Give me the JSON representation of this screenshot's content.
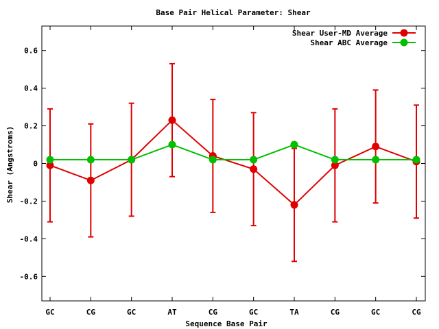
{
  "chart_data": {
    "type": "line",
    "title": "Base Pair Helical Parameter: Shear",
    "xlabel": "Sequence Base Pair",
    "ylabel": "Shear (Angstroms)",
    "categories": [
      "GC",
      "CG",
      "GC",
      "AT",
      "CG",
      "GC",
      "TA",
      "CG",
      "GC",
      "CG"
    ],
    "ylim": [
      -0.73,
      0.73
    ],
    "yticks": [
      -0.6,
      -0.4,
      -0.2,
      0,
      0.2,
      0.4,
      0.6
    ],
    "ytick_labels": [
      "-0.6",
      "-0.4",
      "-0.2",
      "0",
      "0.2",
      "0.4",
      "0.6"
    ],
    "grid": false,
    "legend_position": "top-right",
    "series": [
      {
        "name": "Shear User-MD Average",
        "color": "#e00000",
        "values": [
          -0.01,
          -0.09,
          0.02,
          0.23,
          0.04,
          -0.03,
          -0.22,
          -0.01,
          0.09,
          0.01
        ],
        "error": [
          0.3,
          0.3,
          0.3,
          0.3,
          0.3,
          0.3,
          0.3,
          0.3,
          0.3,
          0.3
        ]
      },
      {
        "name": "Shear ABC Average",
        "color": "#00c000",
        "values": [
          0.02,
          0.02,
          0.02,
          0.1,
          0.02,
          0.02,
          0.1,
          0.02,
          0.02,
          0.02
        ]
      }
    ]
  }
}
